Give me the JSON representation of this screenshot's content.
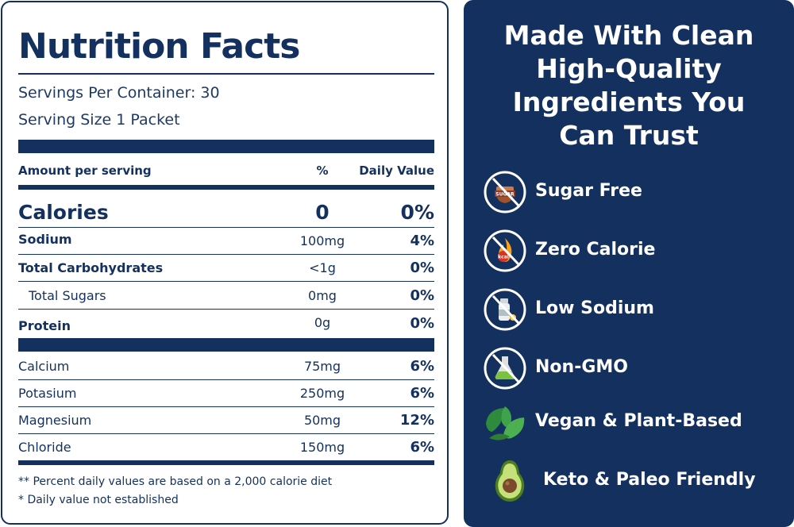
{
  "nutrition": {
    "title": "Nutrition Facts",
    "servings_per_container": "Servings Per Container: 30",
    "serving_size": "Serving Size 1 Packet",
    "header": {
      "amount": "Amount per serving",
      "pct": "%",
      "dv": "Daily Value"
    },
    "calories": {
      "label": "Calories",
      "amount": "0",
      "dv": "0%"
    },
    "rows": [
      {
        "label": "Sodium",
        "amount": "100mg",
        "dv": "4%"
      },
      {
        "label": "Total Carbohydrates",
        "amount": "<1g",
        "dv": "0%"
      },
      {
        "label": "Total Sugars",
        "amount": "0mg",
        "dv": "0%"
      },
      {
        "label": "Protein",
        "amount": "0g",
        "dv": "0%"
      }
    ],
    "minerals": [
      {
        "label": "Calcium",
        "amount": "75mg",
        "dv": "6%"
      },
      {
        "label": "Potasium",
        "amount": "250mg",
        "dv": "6%"
      },
      {
        "label": "Magnesium",
        "amount": "50mg",
        "dv": "12%"
      },
      {
        "label": "Chloride",
        "amount": "150mg",
        "dv": "6%"
      }
    ],
    "footnotes": [
      "** Percent daily values are based on a 2,000 calorie diet",
      "* Daily value not established"
    ]
  },
  "claims": {
    "title_lines": [
      "Made With Clean",
      "High-Quality",
      "Ingredients You",
      "Can Trust"
    ],
    "items": [
      {
        "label": "Sugar Free",
        "icon": "sugar-free-icon"
      },
      {
        "label": "Zero Calorie",
        "icon": "zero-calorie-icon"
      },
      {
        "label": "Low Sodium",
        "icon": "low-sodium-icon"
      },
      {
        "label": "Non-GMO",
        "icon": "non-gmo-icon"
      },
      {
        "label": "Vegan & Plant-Based",
        "icon": "leaf-icon"
      },
      {
        "label": "Keto & Paleo Friendly",
        "icon": "avocado-icon"
      }
    ],
    "icon_text": {
      "sugar": "SUGAR",
      "kcal": "kcal"
    },
    "colors": {
      "navy": "#14305e",
      "white": "#ffffff",
      "leaf": "#3fa34d",
      "avocado": "#7cb342"
    }
  }
}
